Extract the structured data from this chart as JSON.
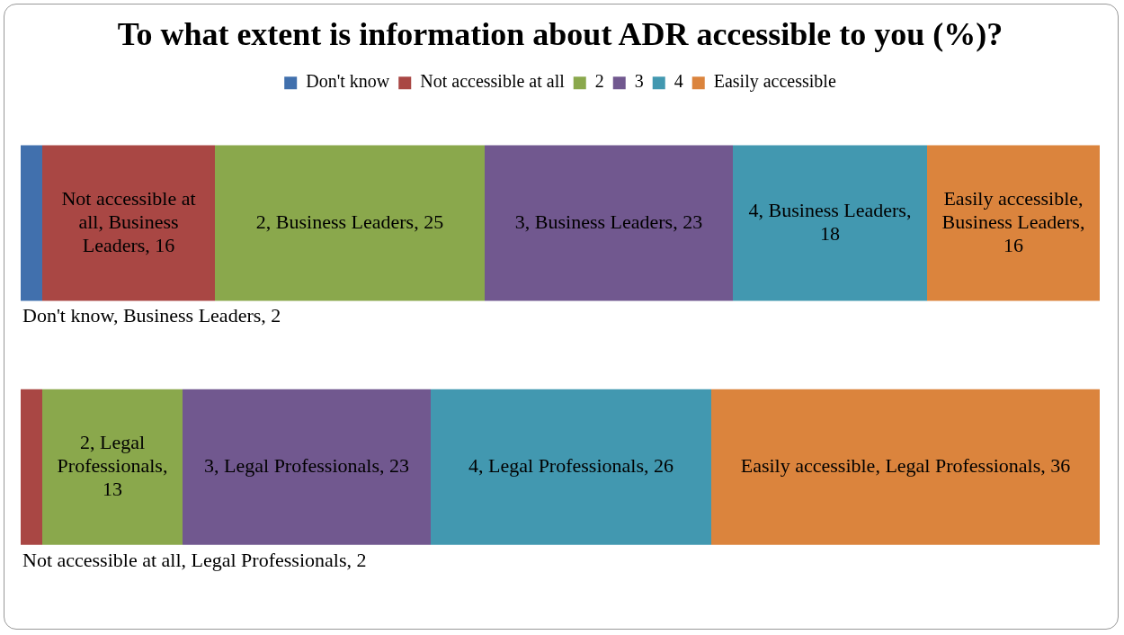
{
  "chart_data": {
    "type": "bar",
    "orientation": "horizontal",
    "stacked": true,
    "title": "To what extent is information about ADR accessible to you (%)?",
    "categories": [
      null,
      null
    ],
    "series": [
      {
        "name": "Don't know",
        "color": "#4170ad",
        "values": [
          2,
          null
        ],
        "value_labels": [
          "Don't know, Business Leaders, 2",
          null
        ]
      },
      {
        "name": "Not accessible at all",
        "color": "#a94744",
        "values": [
          16,
          2
        ],
        "value_labels": [
          "Not accessible at all, Business Leaders, 16",
          "Not accessible at all, Legal Professionals, 2"
        ]
      },
      {
        "name": "2",
        "color": "#8aa84c",
        "values": [
          25,
          13
        ],
        "value_labels": [
          "2, Business Leaders, 25",
          "2, Legal Professionals, 13"
        ]
      },
      {
        "name": "3",
        "color": "#71588f",
        "values": [
          23,
          23
        ],
        "value_labels": [
          "3, Business Leaders, 23",
          "3, Legal Professionals, 23"
        ]
      },
      {
        "name": "4",
        "color": "#4298b0",
        "values": [
          18,
          26
        ],
        "value_labels": [
          "4, Business Leaders, 18",
          "4, Legal Professionals, 26"
        ]
      },
      {
        "name": "Easily accessible",
        "color": "#db843d",
        "values": [
          16,
          36
        ],
        "value_labels": [
          "Easily accessible, Business Leaders, 16",
          "Easily accessible, Legal Professionals, 36"
        ]
      }
    ],
    "legend": "top",
    "tick_labels": false
  }
}
